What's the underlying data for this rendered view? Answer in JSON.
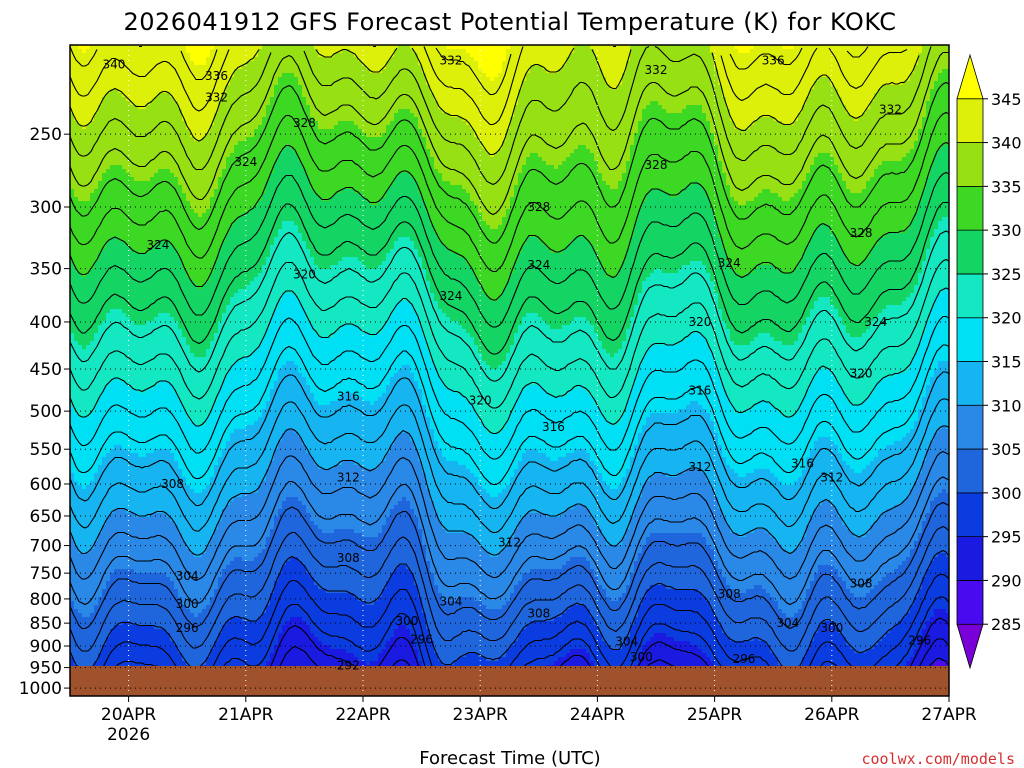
{
  "chart_data": {
    "type": "contour",
    "title": "2026041912 GFS Forecast Potential Temperature (K) for KOKC",
    "xlabel": "Forecast Time (UTC)",
    "credit": "coolwx.com/models",
    "x_ticks": [
      "20APR",
      "21APR",
      "22APR",
      "23APR",
      "24APR",
      "25APR",
      "26APR",
      "27APR"
    ],
    "x_year": "2026",
    "xlim": [
      "2026-04-19T12",
      "2026-04-27T00"
    ],
    "y_ticks": [
      250,
      300,
      350,
      400,
      450,
      500,
      550,
      600,
      650,
      700,
      750,
      800,
      850,
      900,
      950,
      1000
    ],
    "ylim": [
      200,
      1020
    ],
    "y_scale": "log-pressure",
    "grid": true,
    "colorbar": {
      "levels": [
        285,
        290,
        295,
        300,
        305,
        310,
        315,
        320,
        325,
        330,
        335,
        340,
        345
      ],
      "colors": [
        "#7a00d8",
        "#4a0af0",
        "#1a1ae0",
        "#0a3ce0",
        "#1f66dc",
        "#2a88e6",
        "#16b4f0",
        "#00e0f5",
        "#14e8c2",
        "#14d464",
        "#3cd824",
        "#96e014",
        "#dcf00a",
        "#ffff00"
      ]
    },
    "contour_labels": [
      {
        "date": "04-19T21",
        "p": 210,
        "v": "340"
      },
      {
        "date": "04-20T18",
        "p": 216,
        "v": "336"
      },
      {
        "date": "04-20T18",
        "p": 228,
        "v": "332"
      },
      {
        "date": "04-21T12",
        "p": 243,
        "v": "328"
      },
      {
        "date": "04-21T00",
        "p": 268,
        "v": "324"
      },
      {
        "date": "04-20T06",
        "p": 330,
        "v": "324"
      },
      {
        "date": "04-21T12",
        "p": 355,
        "v": "320"
      },
      {
        "date": "04-22T18",
        "p": 208,
        "v": "332"
      },
      {
        "date": "04-23T12",
        "p": 300,
        "v": "328"
      },
      {
        "date": "04-23T12",
        "p": 347,
        "v": "324"
      },
      {
        "date": "04-22T18",
        "p": 375,
        "v": "324"
      },
      {
        "date": "04-24T12",
        "p": 213,
        "v": "332"
      },
      {
        "date": "04-24T12",
        "p": 270,
        "v": "328"
      },
      {
        "date": "04-25T03",
        "p": 345,
        "v": "324"
      },
      {
        "date": "04-24T21",
        "p": 400,
        "v": "320"
      },
      {
        "date": "04-25T12",
        "p": 208,
        "v": "336"
      },
      {
        "date": "04-26T12",
        "p": 235,
        "v": "332"
      },
      {
        "date": "04-26T06",
        "p": 320,
        "v": "328"
      },
      {
        "date": "04-26T09",
        "p": 400,
        "v": "324"
      },
      {
        "date": "04-26T06",
        "p": 455,
        "v": "320"
      },
      {
        "date": "04-21T21",
        "p": 482,
        "v": "316"
      },
      {
        "date": "04-23T00",
        "p": 487,
        "v": "320"
      },
      {
        "date": "04-23T15",
        "p": 520,
        "v": "316"
      },
      {
        "date": "04-24T21",
        "p": 475,
        "v": "316"
      },
      {
        "date": "04-25T18",
        "p": 570,
        "v": "316"
      },
      {
        "date": "04-20T09",
        "p": 600,
        "v": "308"
      },
      {
        "date": "04-21T21",
        "p": 590,
        "v": "312"
      },
      {
        "date": "04-24T21",
        "p": 575,
        "v": "312"
      },
      {
        "date": "04-26T00",
        "p": 590,
        "v": "312"
      },
      {
        "date": "04-23T06",
        "p": 695,
        "v": "312"
      },
      {
        "date": "04-21T21",
        "p": 722,
        "v": "308"
      },
      {
        "date": "04-20T12",
        "p": 755,
        "v": "304"
      },
      {
        "date": "04-20T12",
        "p": 810,
        "v": "300"
      },
      {
        "date": "04-22T18",
        "p": 805,
        "v": "304"
      },
      {
        "date": "04-25T03",
        "p": 790,
        "v": "308"
      },
      {
        "date": "04-26T06",
        "p": 770,
        "v": "308"
      },
      {
        "date": "04-20T12",
        "p": 860,
        "v": "296"
      },
      {
        "date": "04-22T09",
        "p": 845,
        "v": "300"
      },
      {
        "date": "04-23T12",
        "p": 830,
        "v": "308"
      },
      {
        "date": "04-25T15",
        "p": 850,
        "v": "304"
      },
      {
        "date": "04-26T00",
        "p": 860,
        "v": "300"
      },
      {
        "date": "04-21T21",
        "p": 945,
        "v": "292"
      },
      {
        "date": "04-22T12",
        "p": 885,
        "v": "296"
      },
      {
        "date": "04-24T06",
        "p": 890,
        "v": "304"
      },
      {
        "date": "04-24T09",
        "p": 925,
        "v": "300"
      },
      {
        "date": "04-25T06",
        "p": 930,
        "v": "296"
      },
      {
        "date": "04-26T18",
        "p": 888,
        "v": "296"
      }
    ]
  }
}
